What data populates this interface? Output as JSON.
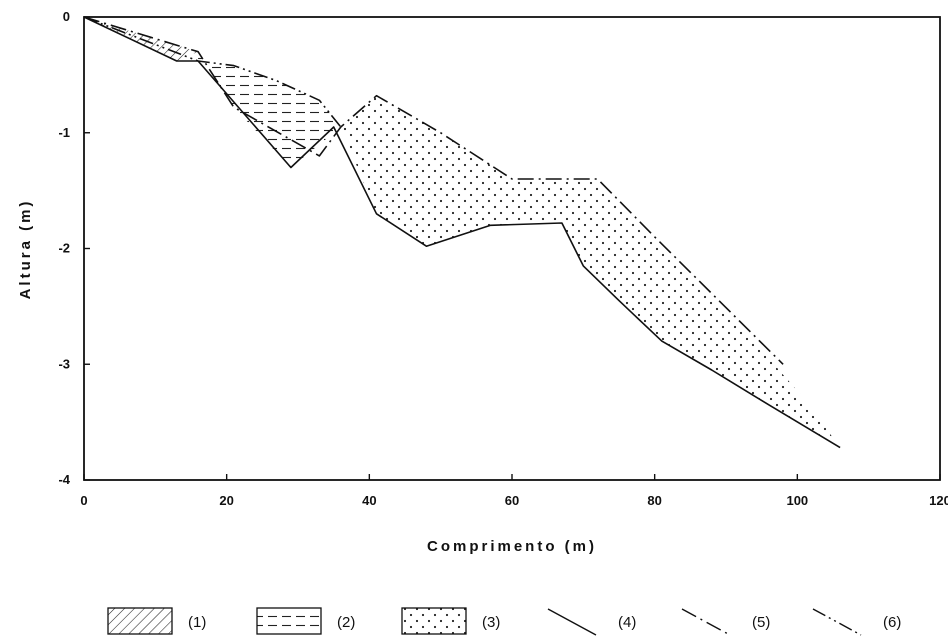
{
  "chart_data": {
    "type": "area",
    "xlabel": "Comprimento (m)",
    "ylabel": "Altura (m)",
    "xlim": [
      0,
      120
    ],
    "ylim": [
      -4,
      0
    ],
    "x_ticks": [
      0,
      20,
      40,
      60,
      80,
      100,
      120
    ],
    "x_tick_labels": [
      "0",
      "20",
      "40",
      "60",
      "80",
      "100",
      "120"
    ],
    "y_ticks": [
      0,
      -1,
      -2,
      -3,
      -4
    ],
    "y_tick_labels": [
      "0",
      "-1",
      "-2",
      "-3",
      "-4"
    ],
    "grid": false,
    "legend_position": "bottom",
    "series": [
      {
        "name": "(4)",
        "style": "solid",
        "x": [
          0,
          13,
          16,
          29,
          35,
          41,
          48,
          57,
          67,
          70,
          75,
          81,
          88,
          96,
          106
        ],
        "y": [
          0,
          -0.38,
          -0.38,
          -1.3,
          -0.95,
          -1.7,
          -1.98,
          -1.8,
          -1.78,
          -2.15,
          -2.45,
          -2.8,
          -3.05,
          -3.35,
          -3.72
        ]
      },
      {
        "name": "(5)",
        "style": "dash-dot",
        "x": [
          0,
          16,
          21,
          33,
          36,
          41,
          50,
          60,
          72,
          80,
          98
        ],
        "y": [
          0,
          -0.3,
          -0.78,
          -1.2,
          -0.95,
          -0.68,
          -1.0,
          -1.4,
          -1.4,
          -1.9,
          -3.0
        ]
      },
      {
        "name": "(6)",
        "style": "dash-dot-dot",
        "x": [
          0,
          16,
          21,
          27,
          33,
          36
        ],
        "y": [
          0,
          -0.38,
          -0.42,
          -0.55,
          -0.72,
          -0.95
        ]
      }
    ],
    "regions": [
      {
        "name": "(1)",
        "pattern": "hatch",
        "x": [
          0,
          16,
          13
        ],
        "y": [
          0,
          -0.3,
          -0.38
        ]
      },
      {
        "name": "(2)",
        "pattern": "dashes",
        "x": [
          16,
          21,
          27,
          33,
          36,
          29,
          21,
          16
        ],
        "y": [
          -0.38,
          -0.42,
          -0.55,
          -0.72,
          -0.95,
          -1.3,
          -0.78,
          -0.3
        ]
      },
      {
        "name": "(3)",
        "pattern": "dots",
        "x": [
          36,
          41,
          50,
          60,
          72,
          80,
          86,
          96,
          101,
          106,
          96,
          88,
          81,
          75,
          70,
          67,
          57,
          48,
          41,
          36
        ],
        "y": [
          -0.95,
          -0.68,
          -1.0,
          -1.4,
          -1.4,
          -1.9,
          -2.3,
          -2.95,
          -3.3,
          -3.72,
          -3.35,
          -3.05,
          -2.8,
          -2.45,
          -2.15,
          -1.78,
          -1.8,
          -1.98,
          -1.7,
          -0.95
        ]
      }
    ]
  }
}
